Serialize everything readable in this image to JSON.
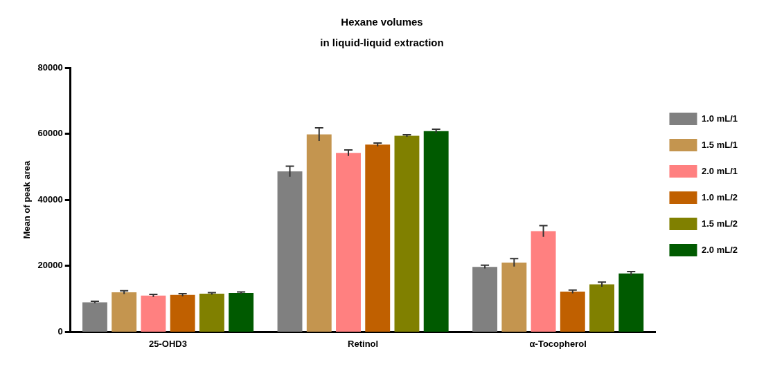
{
  "chart_data": {
    "type": "bar",
    "title": "Hexane volumes\nin liquid-liquid extraction",
    "ylabel": "Mean of peak area",
    "categories": [
      "25-OHD3",
      "Retinol",
      "α-Tocopherol"
    ],
    "series": [
      {
        "name": "1.0 mL/1",
        "color": "#808080",
        "values": [
          9000,
          48600,
          19700
        ],
        "errors": [
          300,
          1600,
          500
        ]
      },
      {
        "name": "1.5 mL/1",
        "color": "#c4954f",
        "values": [
          12000,
          59800,
          21000
        ],
        "errors": [
          500,
          2000,
          1200
        ]
      },
      {
        "name": "2.0 mL/1",
        "color": "#ff8080",
        "values": [
          11000,
          54200,
          30500
        ],
        "errors": [
          400,
          900,
          1700
        ]
      },
      {
        "name": "1.0 mL/2",
        "color": "#c06000",
        "values": [
          11200,
          56700,
          12200
        ],
        "errors": [
          400,
          500,
          500
        ]
      },
      {
        "name": "1.5 mL/2",
        "color": "#808000",
        "values": [
          11600,
          59400,
          14400
        ],
        "errors": [
          300,
          300,
          700
        ]
      },
      {
        "name": "2.0 mL/2",
        "color": "#005a00",
        "values": [
          11800,
          60800,
          17700
        ],
        "errors": [
          300,
          600,
          600
        ]
      }
    ],
    "ylim": [
      0,
      80000
    ],
    "yticks": [
      0,
      20000,
      40000,
      60000,
      80000
    ],
    "grid": false,
    "legend": "right"
  }
}
